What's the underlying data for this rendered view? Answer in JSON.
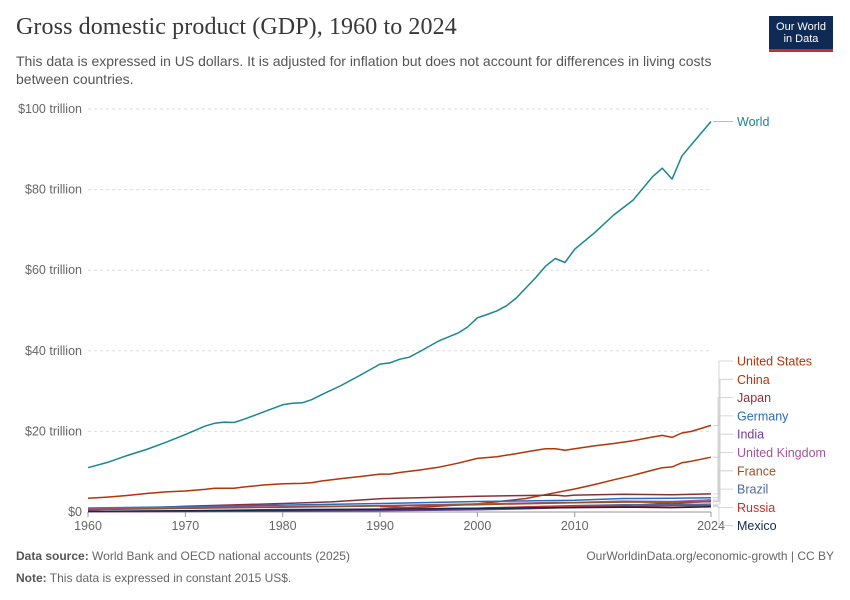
{
  "header": {
    "title": "Gross domestic product (GDP), 1960 to 2024",
    "subtitle": "This data is expressed in US dollars. It is adjusted for inflation but does not account for differences in living costs between countries.",
    "logo_line1": "Our World",
    "logo_line2": "in Data"
  },
  "footer": {
    "source_label": "Data source:",
    "source_text": "World Bank and OECD national accounts (2025)",
    "url_text": "OurWorldinData.org/economic-growth | CC BY",
    "note_label": "Note:",
    "note_text": "This data is expressed in constant 2015 US$."
  },
  "chart_data": {
    "type": "line",
    "xlim": [
      1960,
      2024
    ],
    "ylim": [
      0,
      100
    ],
    "x_ticks": [
      1960,
      1970,
      1980,
      1990,
      2000,
      2010,
      2024
    ],
    "x_tick_labels": [
      "1960",
      "1970",
      "1980",
      "1990",
      "2000",
      "2010",
      "2024"
    ],
    "y_ticks": [
      0,
      20,
      40,
      60,
      80,
      100
    ],
    "y_tick_labels": [
      "$0",
      "$20 trillion",
      "$40 trillion",
      "$60 trillion",
      "$80 trillion",
      "$100 trillion"
    ],
    "grid": "horizontal dashed",
    "legend": "right, labels at line ends",
    "series": [
      {
        "name": "World",
        "color": "#18878f",
        "x": [
          1960,
          1962,
          1964,
          1966,
          1968,
          1970,
          1972,
          1973,
          1974,
          1975,
          1976,
          1978,
          1980,
          1981,
          1982,
          1983,
          1984,
          1986,
          1988,
          1990,
          1991,
          1992,
          1993,
          1994,
          1996,
          1998,
          1999,
          2000,
          2001,
          2002,
          2003,
          2004,
          2006,
          2007,
          2008,
          2009,
          2010,
          2012,
          2014,
          2016,
          2018,
          2019,
          2020,
          2021,
          2022,
          2024
        ],
        "y": [
          11.0,
          12.3,
          14.0,
          15.5,
          17.3,
          19.2,
          21.3,
          22.0,
          22.3,
          22.2,
          23.0,
          24.8,
          26.6,
          27.0,
          27.1,
          27.9,
          29.1,
          31.4,
          34.0,
          36.7,
          37.0,
          37.9,
          38.4,
          39.7,
          42.4,
          44.4,
          45.9,
          48.2,
          49.0,
          49.9,
          51.2,
          53.1,
          58.2,
          61.0,
          62.9,
          61.9,
          65.2,
          69.2,
          73.7,
          77.4,
          83.2,
          85.3,
          82.6,
          88.3,
          91.2,
          96.9
        ]
      },
      {
        "name": "United States",
        "color": "#b13507",
        "x": [
          1960,
          1962,
          1964,
          1966,
          1968,
          1970,
          1972,
          1973,
          1974,
          1975,
          1976,
          1978,
          1980,
          1982,
          1983,
          1984,
          1986,
          1988,
          1990,
          1991,
          1992,
          1994,
          1996,
          1998,
          2000,
          2002,
          2004,
          2006,
          2007,
          2008,
          2009,
          2010,
          2012,
          2014,
          2016,
          2018,
          2019,
          2020,
          2021,
          2022,
          2024
        ],
        "y": [
          3.4,
          3.7,
          4.1,
          4.6,
          5.0,
          5.2,
          5.6,
          5.9,
          5.9,
          5.9,
          6.2,
          6.7,
          7.0,
          7.1,
          7.3,
          7.7,
          8.3,
          8.8,
          9.4,
          9.4,
          9.8,
          10.4,
          11.1,
          12.1,
          13.3,
          13.7,
          14.5,
          15.3,
          15.7,
          15.7,
          15.3,
          15.7,
          16.4,
          17.0,
          17.7,
          18.6,
          19.0,
          18.5,
          19.6,
          20.0,
          21.5
        ]
      },
      {
        "name": "China",
        "color": "#b13507",
        "x": [
          1960,
          1970,
          1978,
          1980,
          1985,
          1990,
          1995,
          2000,
          2005,
          2008,
          2010,
          2012,
          2014,
          2016,
          2018,
          2019,
          2020,
          2021,
          2022,
          2024
        ],
        "y": [
          0.1,
          0.14,
          0.25,
          0.28,
          0.47,
          0.71,
          1.29,
          2.0,
          3.34,
          4.8,
          5.7,
          6.8,
          8.0,
          9.1,
          10.4,
          11.0,
          11.2,
          12.2,
          12.6,
          13.6
        ]
      },
      {
        "name": "Japan",
        "color": "#883039",
        "x": [
          1960,
          1965,
          1970,
          1975,
          1980,
          1985,
          1990,
          1995,
          2000,
          2005,
          2008,
          2009,
          2010,
          2015,
          2020,
          2024
        ],
        "y": [
          0.6,
          0.9,
          1.45,
          1.75,
          2.1,
          2.5,
          3.3,
          3.6,
          3.9,
          4.1,
          4.2,
          3.96,
          4.2,
          4.4,
          4.3,
          4.5
        ]
      },
      {
        "name": "Germany",
        "color": "#286bbb",
        "x": [
          1960,
          1970,
          1980,
          1990,
          2000,
          2010,
          2015,
          2020,
          2024
        ],
        "y": [
          1.0,
          1.3,
          1.7,
          2.1,
          2.6,
          2.9,
          3.35,
          3.4,
          3.55
        ]
      },
      {
        "name": "India",
        "color": "#6d3e91",
        "x": [
          1960,
          1970,
          1980,
          1990,
          2000,
          2005,
          2010,
          2015,
          2019,
          2020,
          2024
        ],
        "y": [
          0.1,
          0.15,
          0.2,
          0.33,
          0.55,
          0.8,
          1.15,
          1.6,
          2.1,
          2.0,
          2.7
        ]
      },
      {
        "name": "United Kingdom",
        "color": "#a2559c",
        "x": [
          1960,
          1970,
          1980,
          1990,
          2000,
          2008,
          2010,
          2015,
          2020,
          2024
        ],
        "y": [
          0.9,
          1.1,
          1.3,
          1.6,
          2.0,
          2.35,
          2.35,
          2.7,
          2.6,
          3.0
        ]
      },
      {
        "name": "France",
        "color": "#9a5129",
        "x": [
          1960,
          1970,
          1980,
          1990,
          2000,
          2010,
          2015,
          2020,
          2024
        ],
        "y": [
          0.6,
          0.9,
          1.2,
          1.5,
          1.8,
          2.3,
          2.45,
          2.4,
          2.55
        ]
      },
      {
        "name": "Brazil",
        "color": "#4c6a9c",
        "x": [
          1960,
          1970,
          1980,
          1990,
          2000,
          2010,
          2015,
          2020,
          2024
        ],
        "y": [
          0.15,
          0.3,
          0.63,
          0.75,
          0.95,
          1.6,
          1.8,
          1.75,
          1.95
        ]
      },
      {
        "name": "Russia",
        "color": "#c4312b",
        "x": [
          1990,
          1995,
          2000,
          2005,
          2008,
          2010,
          2015,
          2020,
          2024
        ],
        "y": [
          1.35,
          0.85,
          0.95,
          1.25,
          1.45,
          1.5,
          1.35,
          1.55,
          1.6
        ]
      },
      {
        "name": "Mexico",
        "color": "#0f2a54",
        "x": [
          1960,
          1970,
          1980,
          1990,
          2000,
          2010,
          2015,
          2020,
          2024
        ],
        "y": [
          0.15,
          0.3,
          0.5,
          0.64,
          0.9,
          1.1,
          1.2,
          1.1,
          1.3
        ]
      }
    ]
  }
}
